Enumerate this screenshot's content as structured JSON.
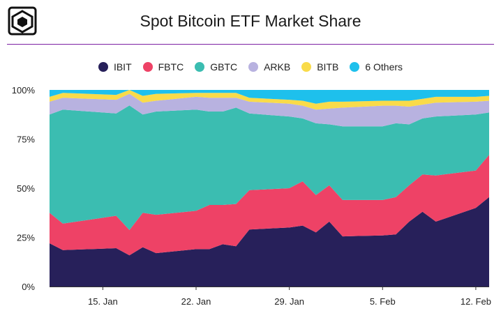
{
  "title": "Spot Bitcoin ETF Market Share",
  "logo_icon": "cube-logo-icon",
  "colors": {
    "rule": "#7b1fa2",
    "IBIT": "#27205a",
    "FBTC": "#ee4266",
    "GBTC": "#3bbdb1",
    "ARKB": "#b8b2e0",
    "BITB": "#f9db4a",
    "6 Others": "#1ec0ec"
  },
  "chart_data": {
    "type": "area",
    "stacked": true,
    "title": "Spot Bitcoin ETF Market Share",
    "ylim": [
      0,
      100
    ],
    "y_ticks": [
      "0%",
      "25%",
      "50%",
      "75%",
      "100%"
    ],
    "y_tick_values": [
      0,
      25,
      50,
      75,
      100
    ],
    "x_tick_labels": [
      "15. Jan",
      "22. Jan",
      "29. Jan",
      "5. Feb",
      "12. Feb"
    ],
    "x_tick_values": [
      "2024-01-15",
      "2024-01-22",
      "2024-01-29",
      "2024-02-05",
      "2024-02-12"
    ],
    "grid": false,
    "legend_position": "top",
    "x": [
      "2024-01-11",
      "2024-01-12",
      "2024-01-16",
      "2024-01-17",
      "2024-01-18",
      "2024-01-19",
      "2024-01-22",
      "2024-01-23",
      "2024-01-24",
      "2024-01-25",
      "2024-01-26",
      "2024-01-29",
      "2024-01-30",
      "2024-01-31",
      "2024-02-01",
      "2024-02-02",
      "2024-02-05",
      "2024-02-06",
      "2024-02-07",
      "2024-02-08",
      "2024-02-09",
      "2024-02-12",
      "2024-02-13"
    ],
    "series": [
      {
        "name": "IBIT",
        "values": [
          22,
          18.5,
          19.5,
          16,
          20,
          17,
          19,
          19,
          21.5,
          20.5,
          29,
          30,
          31,
          27.5,
          33,
          25.5,
          26,
          26.5,
          33,
          38,
          33,
          40,
          45.5
        ]
      },
      {
        "name": "FBTC",
        "values": [
          15.5,
          13.5,
          16.5,
          13,
          17.5,
          19.5,
          19.5,
          22.5,
          20,
          21.5,
          20,
          20,
          22.5,
          19,
          18.5,
          18.5,
          18,
          19,
          18.5,
          19,
          23.5,
          19,
          21.5
        ]
      },
      {
        "name": "GBTC",
        "values": [
          50,
          58,
          52,
          64,
          50,
          52.5,
          51.5,
          47.5,
          47.5,
          49,
          39,
          36.5,
          32,
          36.5,
          31,
          37.5,
          37.5,
          37.5,
          31,
          28.5,
          30,
          28.5,
          21.5
        ]
      },
      {
        "name": "ARKB",
        "values": [
          6.5,
          6,
          7,
          6,
          6,
          5.5,
          6.5,
          7,
          7,
          5,
          6,
          6.5,
          6.5,
          7,
          8,
          9.5,
          10.5,
          9,
          9,
          7,
          7,
          6.5,
          6
        ]
      },
      {
        "name": "BITB",
        "values": [
          2.5,
          2.5,
          2.5,
          2,
          3.5,
          3.5,
          2,
          2.5,
          2.5,
          2.5,
          2,
          2,
          2.5,
          3,
          3.5,
          3,
          2.5,
          2.5,
          3,
          3,
          3,
          2.5,
          2.5
        ]
      },
      {
        "name": "6 Others",
        "values": [
          3.5,
          1.5,
          2.5,
          0,
          3,
          2,
          1.5,
          1.5,
          1.5,
          1.5,
          4,
          5,
          5.5,
          7,
          6,
          6,
          5.5,
          5.5,
          5.5,
          4.5,
          3.5,
          3.5,
          3
        ]
      }
    ]
  }
}
